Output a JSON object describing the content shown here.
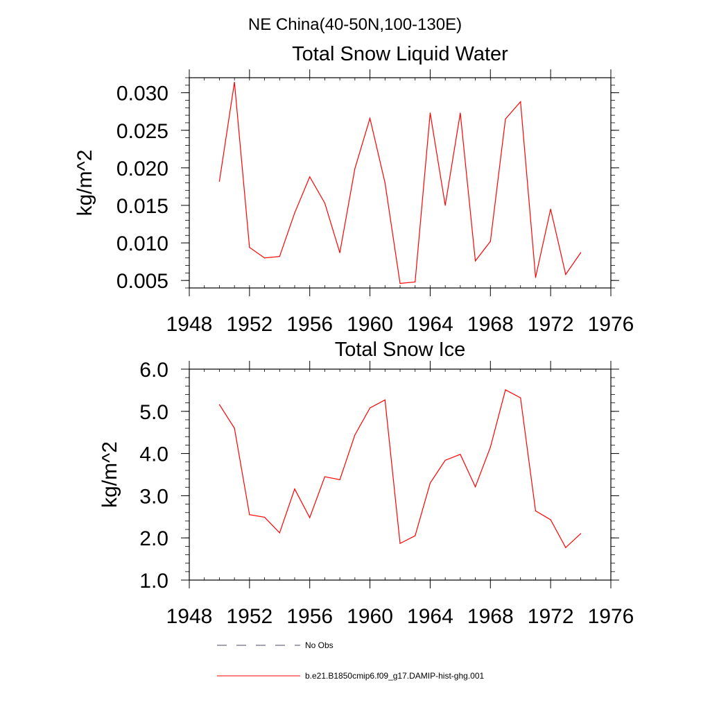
{
  "figure_title": "NE China(40-50N,100-130E)",
  "chart_data": [
    {
      "type": "line",
      "title": "Total Snow Liquid Water",
      "xlabel": "",
      "ylabel": "kg/m^2",
      "xlim": [
        1948,
        1976
      ],
      "ylim": [
        0.004,
        0.032
      ],
      "xticks": [
        1948,
        1952,
        1956,
        1960,
        1964,
        1968,
        1972,
        1976
      ],
      "xtick_labels": [
        "1948",
        "1952",
        "1956",
        "1960",
        "1964",
        "1968",
        "1972",
        "1976"
      ],
      "yticks": [
        0.005,
        0.01,
        0.015,
        0.02,
        0.025,
        0.03
      ],
      "ytick_labels": [
        "0.005",
        "0.010",
        "0.015",
        "0.020",
        "0.025",
        "0.030"
      ],
      "grid": false,
      "x": [
        1950,
        1951,
        1952,
        1953,
        1954,
        1955,
        1956,
        1957,
        1958,
        1959,
        1960,
        1961,
        1962,
        1963,
        1964,
        1965,
        1966,
        1967,
        1968,
        1969,
        1970,
        1971,
        1972,
        1973,
        1974
      ],
      "series": [
        {
          "name": "b.e21.B1850cmip6.f09_g17.DAMIP-hist-ghg.001",
          "color": "#ff0000",
          "values": [
            0.0182,
            0.0314,
            0.0094,
            0.008,
            0.0082,
            0.014,
            0.0188,
            0.0153,
            0.0087,
            0.0199,
            0.0266,
            0.018,
            0.0046,
            0.0048,
            0.0273,
            0.015,
            0.0273,
            0.0076,
            0.0102,
            0.0265,
            0.0288,
            0.0054,
            0.0145,
            0.0058,
            0.0087
          ]
        }
      ]
    },
    {
      "type": "line",
      "title": "Total Snow Ice",
      "xlabel": "",
      "ylabel": "kg/m^2",
      "xlim": [
        1948,
        1976
      ],
      "ylim": [
        1.0,
        6.0
      ],
      "xticks": [
        1948,
        1952,
        1956,
        1960,
        1964,
        1968,
        1972,
        1976
      ],
      "xtick_labels": [
        "1948",
        "1952",
        "1956",
        "1960",
        "1964",
        "1968",
        "1972",
        "1976"
      ],
      "yticks": [
        1.0,
        2.0,
        3.0,
        4.0,
        5.0,
        6.0
      ],
      "ytick_labels": [
        "1.0",
        "2.0",
        "3.0",
        "4.0",
        "5.0",
        "6.0"
      ],
      "grid": false,
      "x": [
        1950,
        1951,
        1952,
        1953,
        1954,
        1955,
        1956,
        1957,
        1958,
        1959,
        1960,
        1961,
        1962,
        1963,
        1964,
        1965,
        1966,
        1967,
        1968,
        1969,
        1970,
        1971,
        1972,
        1973,
        1974
      ],
      "series": [
        {
          "name": "b.e21.B1850cmip6.f09_g17.DAMIP-hist-ghg.001",
          "color": "#ff0000",
          "values": [
            5.16,
            4.6,
            2.55,
            2.49,
            2.12,
            3.16,
            2.48,
            3.45,
            3.38,
            4.44,
            5.08,
            5.27,
            1.87,
            2.05,
            3.3,
            3.84,
            3.98,
            3.21,
            4.15,
            5.51,
            5.32,
            2.64,
            2.43,
            1.77,
            2.1
          ]
        }
      ]
    }
  ],
  "legend": {
    "placement": "bottom-left",
    "items": [
      {
        "label": "No Obs",
        "style": "dashed",
        "color": "#444466"
      },
      {
        "label": "b.e21.B1850cmip6.f09_g17.DAMIP-hist-ghg.001",
        "style": "solid",
        "color": "#ff0000"
      }
    ]
  }
}
